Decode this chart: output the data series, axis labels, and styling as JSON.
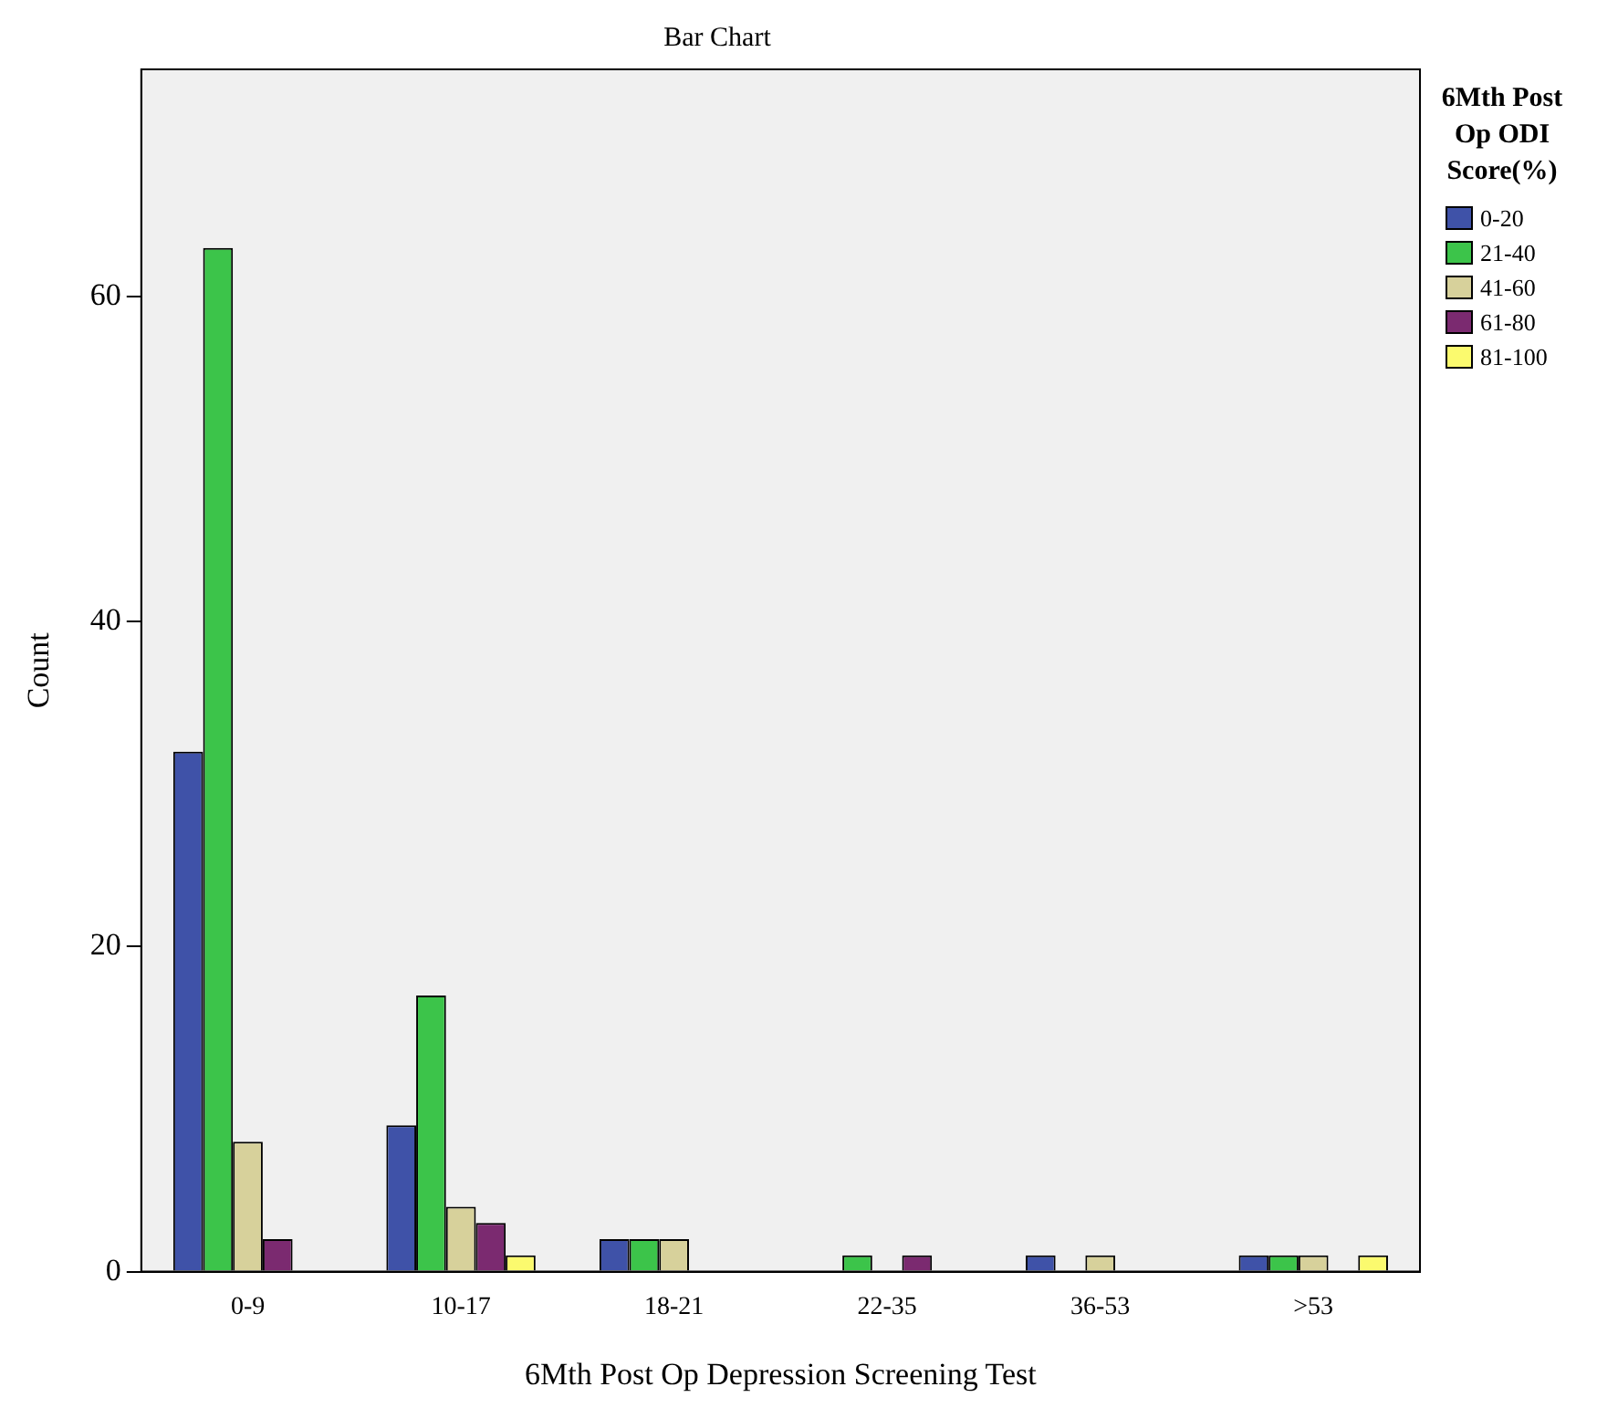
{
  "chart_data": {
    "type": "bar",
    "title": "Bar Chart",
    "xlabel": "6Mth Post Op Depression Screening Test",
    "ylabel": "Count",
    "legend_title": "6Mth Post Op ODI Score(%)",
    "legend": "right",
    "grid": false,
    "categories": [
      "0-9",
      "10-17",
      "18-21",
      "22-35",
      "36-53",
      ">53"
    ],
    "ylim": [
      0,
      74
    ],
    "yticks": [
      0,
      20,
      40,
      60
    ],
    "series": [
      {
        "name": "0-20",
        "color": "#3f52a8",
        "values": [
          32,
          9,
          2,
          0,
          1,
          1
        ]
      },
      {
        "name": "21-40",
        "color": "#3cc44a",
        "values": [
          63,
          17,
          2,
          1,
          0,
          1
        ]
      },
      {
        "name": "41-60",
        "color": "#d7d19b",
        "values": [
          8,
          4,
          2,
          0,
          1,
          1
        ]
      },
      {
        "name": "61-80",
        "color": "#7b2a70",
        "values": [
          2,
          3,
          0,
          1,
          0,
          0
        ]
      },
      {
        "name": "81-100",
        "color": "#fbfa6e",
        "values": [
          0,
          1,
          0,
          0,
          0,
          1
        ]
      }
    ]
  }
}
